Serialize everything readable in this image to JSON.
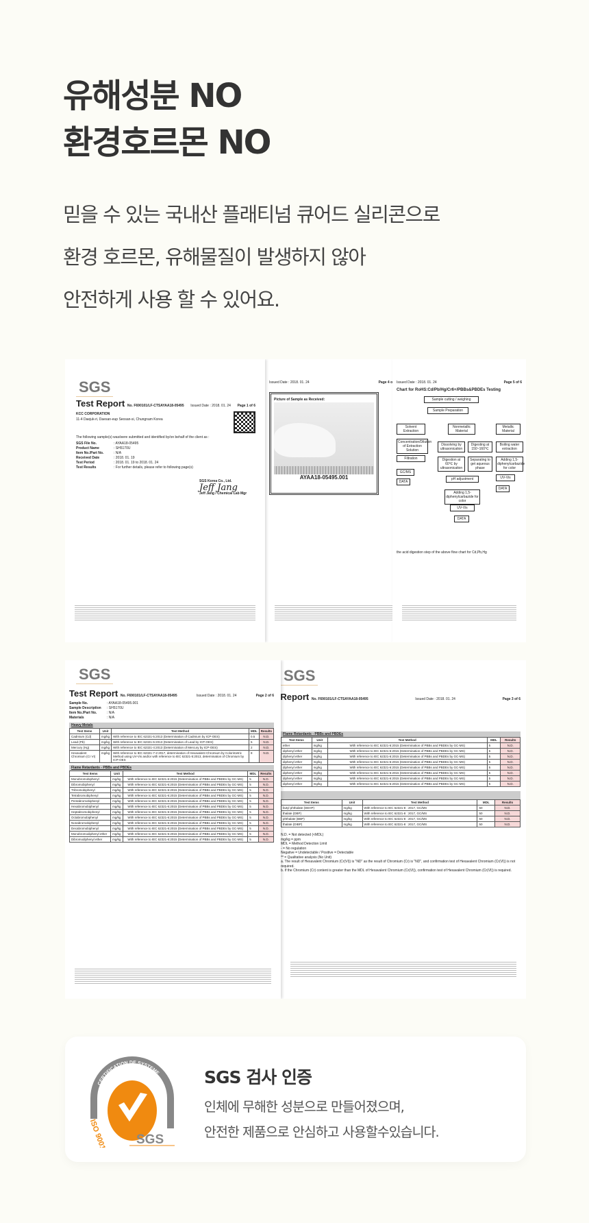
{
  "headline": {
    "line1": "유해성분 NO",
    "line2": "환경호르몬 NO"
  },
  "description": {
    "line1": "믿을 수 있는 국내산 플래티넘 큐어드 실리콘으로",
    "line2": "환경 호르몬, 유해물질이 발생하지 않아",
    "line3": "안전하게 사용 할 수 있어요."
  },
  "docs": {
    "logo": "SGS",
    "report_title": "Test Report",
    "report_no": "No. F690101/LF-CTSAYAA18-05495",
    "issued": "Issued Date : 2018. 01. 24",
    "page1": {
      "page": "Page 1 of 6",
      "company": "KCC CORPORATION",
      "address": "11-4 Daejuk-ri, Daesan-eup Seosan-si, Chungnam Korea",
      "intro": "The following sample(s) was/were submitted and identified by/on behalf of the client as :",
      "fields": [
        [
          "SGS File No.",
          ": AYAA18-05495"
        ],
        [
          "Product Name",
          ": SH5170U"
        ],
        [
          "Item No./Part No.",
          ": N/A"
        ],
        [
          "Received Date",
          ": 2018. 01. 19"
        ],
        [
          "Test Period",
          ": 2018. 01. 19 to 2018. 01. 24"
        ],
        [
          "Test Results",
          ": For further details, please refer to following page(s)"
        ]
      ],
      "signer_org": "SGS Korea Co., Ltd.",
      "signature": "Jeff Jang",
      "signer": "Jeff Jang / Chemical Lab Mgr"
    },
    "page4": {
      "page": "Page 4 of 6",
      "caption": "Picture of Sample as Received:",
      "sample_id": "AYAA18-05495.001"
    },
    "page5": {
      "page": "Page 5 of 6",
      "chart_title": "Chart for RoHS:Cd/Pb/Hg/Cr6+/PBBs&PBDEs Testing",
      "boxes": [
        "Sample cutting / weighing",
        "Sample Preparation",
        "Solvent Extraction",
        "Nonmetallic Material",
        "Metallic Material",
        "Concentration/Dilution of Extraction Solution",
        "Dissolving by ultrasonication",
        "Digesting at 150~160℃",
        "Boiling water extraction",
        "Filtration",
        "Digestion at 60℃ by ultrasonication",
        "Separating to get aqueous phase",
        "Adding 1,5-diphenylcarbazide for color",
        "GC/MS",
        "DATA",
        "pH adjustment",
        "UV-Vis",
        "DATA",
        "Adding 1,5-diphenylcarbazide for color",
        "UV-Vis",
        "DATA"
      ],
      "note": "the acid digestion step of the above flow chart for Cd,Pb,Hg"
    },
    "page2": {
      "page": "Page 2 of 6",
      "fields": [
        [
          "Sample No.",
          ": AYAA18-05495.001"
        ],
        [
          "Sample Description",
          ": SH5170U"
        ],
        [
          "Item No./Part No.",
          ": N/A"
        ],
        [
          "Materials",
          ": N/A"
        ]
      ],
      "section1": "Heavy Metals",
      "section2": "Flame Retardants - PBBs and PBDEs",
      "headers": [
        "Test Items",
        "Unit",
        "Test Method",
        "MDL",
        "Results"
      ],
      "metals": [
        [
          "Cadmium (Cd)",
          "mg/kg",
          "With reference to IEC 62321-5:2013 (Determination of Cadmium by ICP-OES)",
          "0.5",
          "N.D."
        ],
        [
          "Lead (Pb)",
          "mg/kg",
          "With reference to IEC 62321-5:2013 (Determination of Lead by ICP-OES)",
          "5",
          "N.D."
        ],
        [
          "Mercury (Hg)",
          "mg/kg",
          "With reference to IEC 62321-4:2013 (Determination of Mercury by ICP-OES)",
          "2",
          "N.D."
        ],
        [
          "Hexavalent Chromium (Cr VI)",
          "mg/kg",
          "With reference to IEC 62321-7-2:2017, determination of Hexavalent Chromium by Colorimetric Method using UV-Vis and/or with reference to IEC 62321-5:2013, determination of Chromium by ICP-OES",
          "8",
          "N.D."
        ]
      ],
      "pbbs": [
        "Monobromobiphenyl",
        "Dibromobiphenyl",
        "Tribromobiphenyl",
        "Tetrabromobiphenyl",
        "Pentabromobiphenyl",
        "Hexabromobiphenyl",
        "Heptabromobiphenyl",
        "Octabromobiphenyl",
        "Nonabromobiphenyl",
        "Decabromobiphenyl",
        "Monobromodiphenyl ether",
        "Dibromodiphenyl ether"
      ],
      "pbb_method": "With reference to IEC 62321-6:2015 (Determination of PBBs and PBDEs by GC-MS)",
      "unit": "mg/kg",
      "mdl": "5",
      "result": "N.D."
    },
    "page3": {
      "page": "Page 3 of 6",
      "section": "Flame Retardants - PBBs and PBDEs",
      "rows": [
        "ether",
        "diphenyl ether",
        "diphenyl ether",
        "diphenyl ether",
        "diphenyl ether",
        "diphenyl ether",
        "diphenyl ether",
        "diphenyl ether"
      ],
      "phthalates": [
        [
          "butyl phthalate (DEHP)",
          "mg/kg",
          "With reference to IEC 62321-8 : 2017, GC/MS",
          "50",
          "N.D."
        ],
        [
          "thalate (DBP)",
          "mg/kg",
          "With reference to IEC 62321-8 : 2017, GC/MS",
          "50",
          "N.D."
        ],
        [
          "phthalate (BBP)",
          "mg/kg",
          "With reference to IEC 62321-8 : 2017, GC/MS",
          "50",
          "N.D."
        ],
        [
          "thalate (DIBP)",
          "mg/kg",
          "With reference to IEC 62321-8 : 2017, GC/MS",
          "50",
          "N.D."
        ]
      ],
      "notes": [
        "N.D. = Not detected (<MDL)",
        "mg/kg = ppm",
        "MDL = Method Detection Limit",
        "- = No regulation",
        "Negative = Undetectable / Positive = Detectable",
        "** = Qualitative analysis (No Unit)",
        "a. The result of Hexavalent Chromium (Cr(VI)) is \"ND\" as the result of Chromium (Cr) is \"ND\", and confirmation test of Hexavalent Chromium (Cr(VI)) is not required.",
        "b. If the Chromium (Cr) content is greater than the MDL of Hexavalent Chromium (Cr(VI)), confirmation test of Hexavalent Chromium (Cr(VI)) is required."
      ]
    }
  },
  "certification": {
    "logo_arc_text": "CERTIFICATION DE SYSTEME",
    "logo_side_text": "ISO 9001",
    "logo_brand": "SGS",
    "title": "SGS 검사 인증",
    "line1": "인체에 무해한 성분으로 만들어졌으며,",
    "line2": "안전한 제품으로 안심하고 사용할수있습니다.",
    "accent": "#f08a10",
    "gray": "#888888"
  }
}
